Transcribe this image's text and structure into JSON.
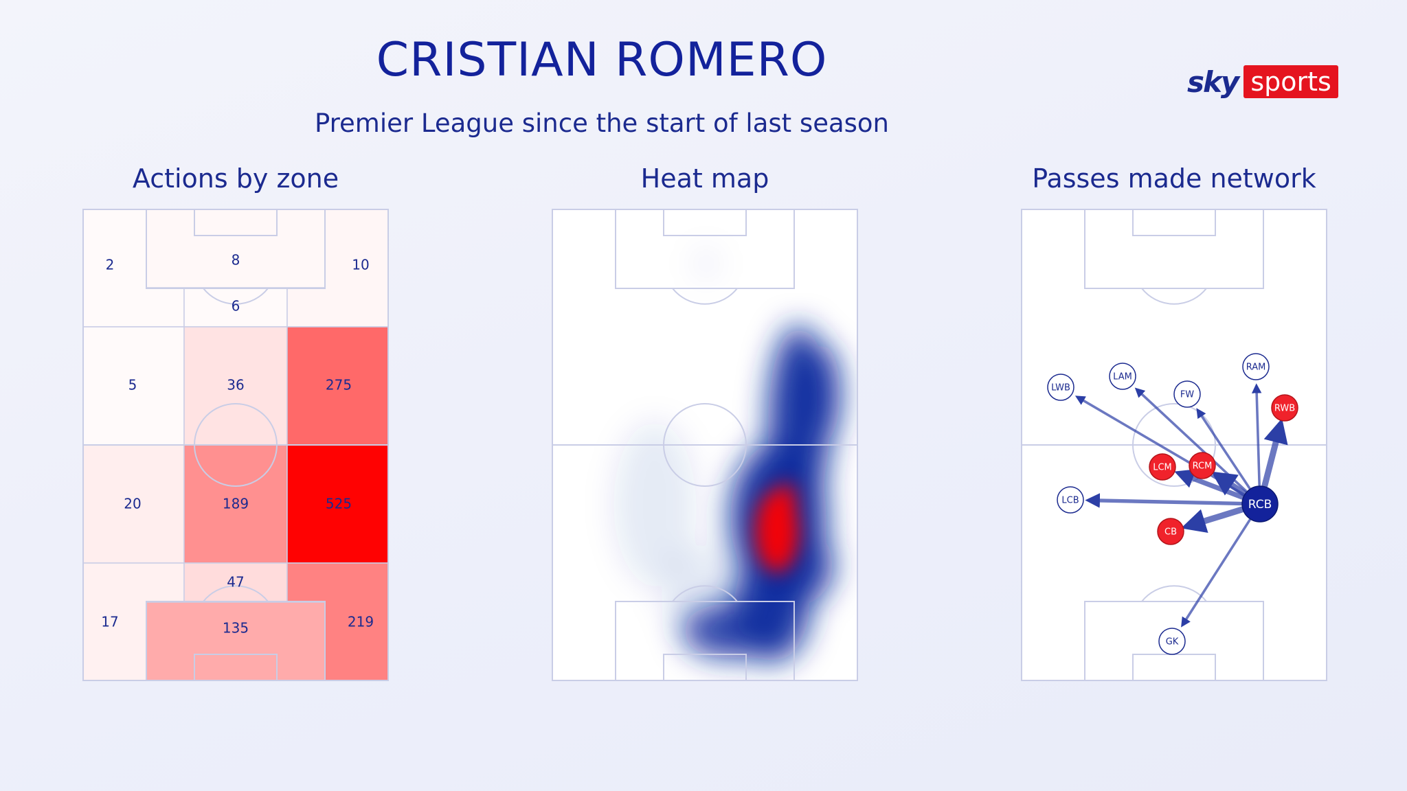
{
  "header": {
    "title": "CRISTIAN ROMERO",
    "subtitle": "Premier League since the start of last season"
  },
  "logo": {
    "sky": "sky",
    "sports": "sports",
    "brand_red": "#e5141f"
  },
  "colors": {
    "navy": "#13229b",
    "red": "#ff0000",
    "pitch_line": "#c9cde6"
  },
  "chart_data": [
    {
      "type": "heatmap",
      "title": "Actions by zone",
      "zones": [
        {
          "id": "left-top",
          "value": 2
        },
        {
          "id": "box-top",
          "value": 8
        },
        {
          "id": "centre-top",
          "value": 6
        },
        {
          "id": "right-top",
          "value": 10
        },
        {
          "id": "left-upper-mid",
          "value": 5
        },
        {
          "id": "centre-upper-mid",
          "value": 36
        },
        {
          "id": "right-upper-mid",
          "value": 275
        },
        {
          "id": "left-lower-mid",
          "value": 20
        },
        {
          "id": "centre-lower-mid",
          "value": 189
        },
        {
          "id": "right-lower-mid",
          "value": 525
        },
        {
          "id": "centre-bottom",
          "value": 47
        },
        {
          "id": "left-bottom",
          "value": 17
        },
        {
          "id": "box-bottom",
          "value": 135
        },
        {
          "id": "right-bottom",
          "value": 219
        }
      ],
      "max": 525
    },
    {
      "type": "heatmap",
      "title": "Heat map",
      "colorscale": [
        "#ffffff",
        "#0a2a9e",
        "#ff0000"
      ]
    },
    {
      "type": "scatter",
      "title": "Passes made network",
      "source": "RCB",
      "nodes": [
        {
          "label": "LWB",
          "color": "white"
        },
        {
          "label": "LAM",
          "color": "white"
        },
        {
          "label": "FW",
          "color": "white"
        },
        {
          "label": "RAM",
          "color": "white"
        },
        {
          "label": "RWB",
          "color": "red"
        },
        {
          "label": "LCM",
          "color": "red"
        },
        {
          "label": "RCM",
          "color": "red"
        },
        {
          "label": "LCB",
          "color": "white"
        },
        {
          "label": "RCB",
          "color": "navy"
        },
        {
          "label": "CB",
          "color": "red"
        },
        {
          "label": "GK",
          "color": "white"
        }
      ],
      "passes": [
        {
          "to": "LWB",
          "weight": 2
        },
        {
          "to": "LAM",
          "weight": 2
        },
        {
          "to": "FW",
          "weight": 2
        },
        {
          "to": "RAM",
          "weight": 2
        },
        {
          "to": "RWB",
          "weight": 5
        },
        {
          "to": "LCM",
          "weight": 4
        },
        {
          "to": "RCM",
          "weight": 5
        },
        {
          "to": "LCB",
          "weight": 3
        },
        {
          "to": "CB",
          "weight": 5
        },
        {
          "to": "GK",
          "weight": 2
        }
      ]
    }
  ]
}
